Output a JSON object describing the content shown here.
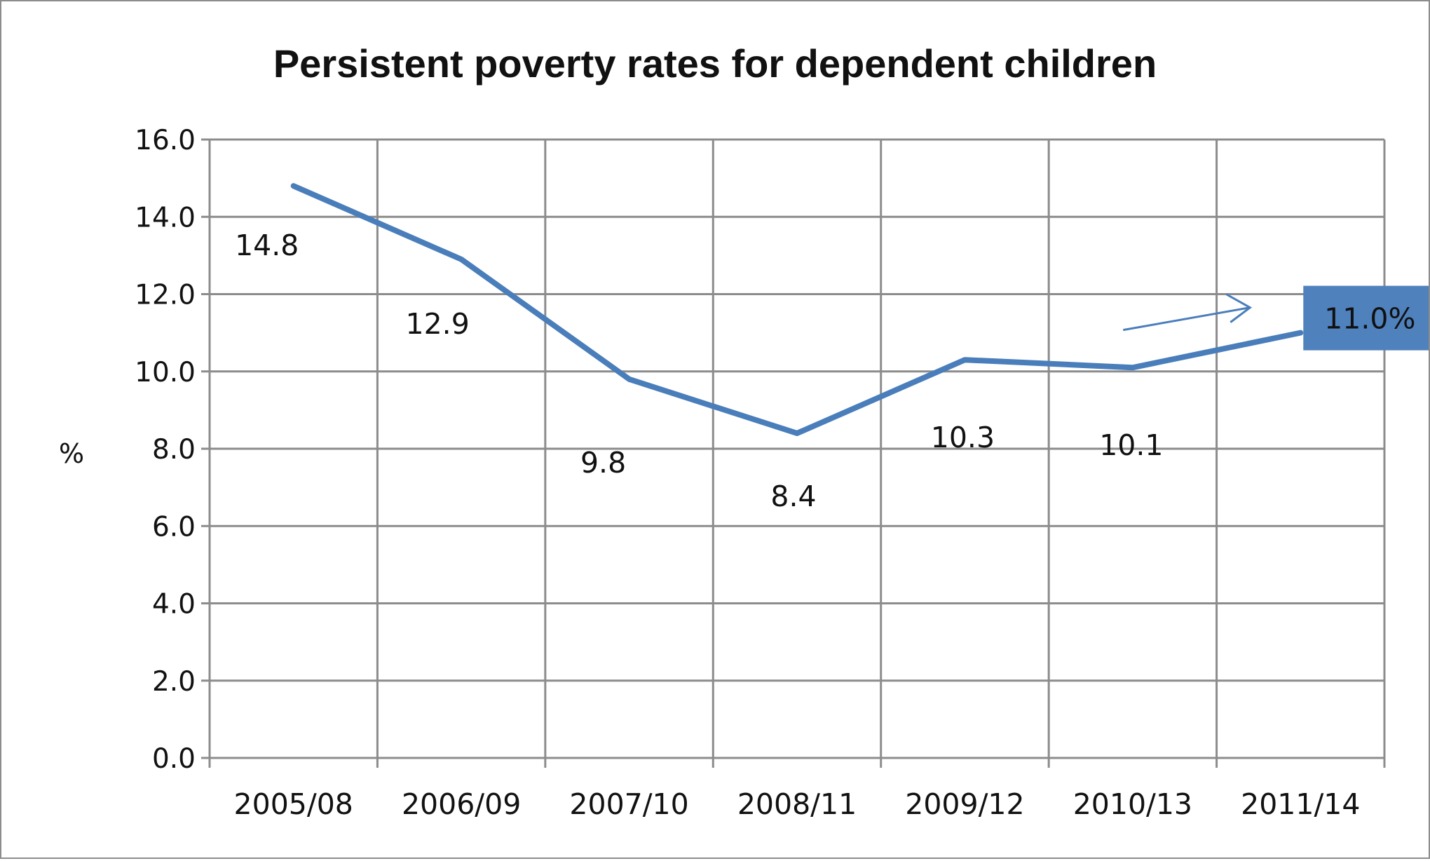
{
  "chart_data": {
    "type": "line",
    "title": "Persistent poverty rates for dependent children",
    "xlabel": "",
    "ylabel": "%",
    "ylim": [
      0,
      16
    ],
    "y_ticks": [
      "0.0",
      "2.0",
      "4.0",
      "6.0",
      "8.0",
      "10.0",
      "12.0",
      "14.0",
      "16.0"
    ],
    "categories": [
      "2005/08",
      "2006/09",
      "2007/10",
      "2008/11",
      "2009/12",
      "2010/13",
      "2011/14"
    ],
    "series": [
      {
        "values": [
          14.8,
          12.9,
          9.8,
          8.4,
          10.3,
          10.1,
          11.0
        ]
      }
    ],
    "data_labels": [
      "14.8",
      "12.9",
      "9.8",
      "8.4",
      "10.3",
      "10.1"
    ],
    "callout": {
      "text": "11.0%",
      "points_to": "2011/14"
    },
    "grid": true,
    "legend": "none",
    "colors": {
      "line": "#4a7ebb",
      "callout_fill": "#4f81bd",
      "grid": "#8c8c8c"
    }
  }
}
